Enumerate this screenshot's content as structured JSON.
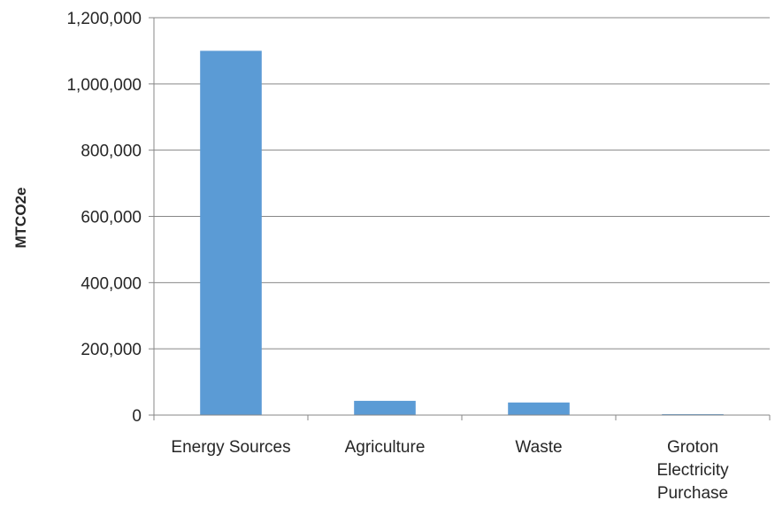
{
  "chart_data": {
    "type": "bar",
    "title": "",
    "xlabel": "",
    "ylabel": "MTCO2e",
    "categories": [
      [
        "Energy Sources"
      ],
      [
        "Agriculture"
      ],
      [
        "Waste"
      ],
      [
        "Groton",
        "Electricity",
        "Purchase"
      ]
    ],
    "values": [
      1100000,
      43000,
      38000,
      2000
    ],
    "ylim": [
      0,
      1200000
    ],
    "yticks": [
      0,
      200000,
      400000,
      600000,
      800000,
      1000000,
      1200000
    ],
    "ytick_labels": [
      "0",
      "200,000",
      "400,000",
      "600,000",
      "800,000",
      "1,000,000",
      "1,200,000"
    ],
    "grid": true,
    "legend": "none",
    "bar_color": "#5B9BD5",
    "grid_color": "#878787"
  }
}
